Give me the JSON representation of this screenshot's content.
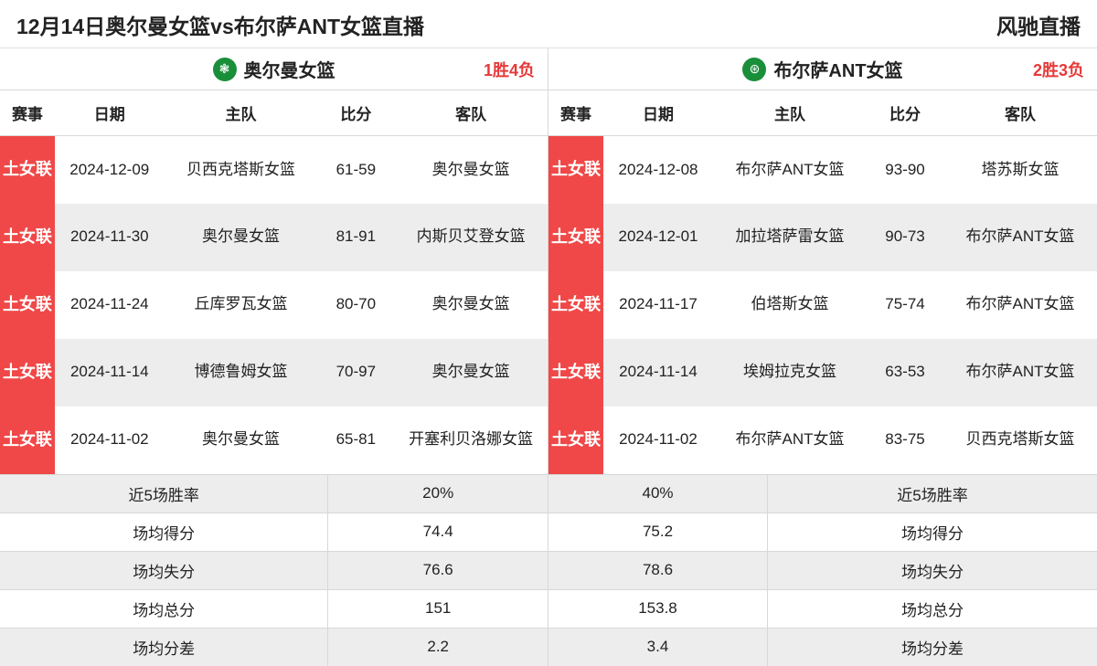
{
  "header": {
    "title": "12月14日奥尔曼女篮vs布尔萨ANT女篮直播",
    "brand": "风驰直播"
  },
  "columns": [
    "赛事",
    "日期",
    "主队",
    "比分",
    "客队"
  ],
  "left": {
    "team_name": "奥尔曼女篮",
    "record": "1胜4负",
    "logo_glyph": "❃",
    "rows": [
      {
        "league": "土女联",
        "date": "2024-12-09",
        "home": "贝西克塔斯女篮",
        "score": "61-59",
        "away": "奥尔曼女篮"
      },
      {
        "league": "土女联",
        "date": "2024-11-30",
        "home": "奥尔曼女篮",
        "score": "81-91",
        "away": "内斯贝艾登女篮"
      },
      {
        "league": "土女联",
        "date": "2024-11-24",
        "home": "丘库罗瓦女篮",
        "score": "80-70",
        "away": "奥尔曼女篮"
      },
      {
        "league": "土女联",
        "date": "2024-11-14",
        "home": "博德鲁姆女篮",
        "score": "70-97",
        "away": "奥尔曼女篮"
      },
      {
        "league": "土女联",
        "date": "2024-11-02",
        "home": "奥尔曼女篮",
        "score": "65-81",
        "away": "开塞利贝洛娜女篮"
      }
    ],
    "stats": [
      {
        "label": "近5场胜率",
        "value": "20%"
      },
      {
        "label": "场均得分",
        "value": "74.4"
      },
      {
        "label": "场均失分",
        "value": "76.6"
      },
      {
        "label": "场均总分",
        "value": "151"
      },
      {
        "label": "场均分差",
        "value": "2.2"
      }
    ]
  },
  "right": {
    "team_name": "布尔萨ANT女篮",
    "record": "2胜3负",
    "logo_glyph": "⊛",
    "rows": [
      {
        "league": "土女联",
        "date": "2024-12-08",
        "home": "布尔萨ANT女篮",
        "score": "93-90",
        "away": "塔苏斯女篮"
      },
      {
        "league": "土女联",
        "date": "2024-12-01",
        "home": "加拉塔萨雷女篮",
        "score": "90-73",
        "away": "布尔萨ANT女篮"
      },
      {
        "league": "土女联",
        "date": "2024-11-17",
        "home": "伯塔斯女篮",
        "score": "75-74",
        "away": "布尔萨ANT女篮"
      },
      {
        "league": "土女联",
        "date": "2024-11-14",
        "home": "埃姆拉克女篮",
        "score": "63-53",
        "away": "布尔萨ANT女篮"
      },
      {
        "league": "土女联",
        "date": "2024-11-02",
        "home": "布尔萨ANT女篮",
        "score": "83-75",
        "away": "贝西克塔斯女篮"
      }
    ],
    "stats": [
      {
        "label": "近5场胜率",
        "value": "40%"
      },
      {
        "label": "场均得分",
        "value": "75.2"
      },
      {
        "label": "场均失分",
        "value": "78.6"
      },
      {
        "label": "场均总分",
        "value": "153.8"
      },
      {
        "label": "场均分差",
        "value": "3.4"
      }
    ]
  }
}
